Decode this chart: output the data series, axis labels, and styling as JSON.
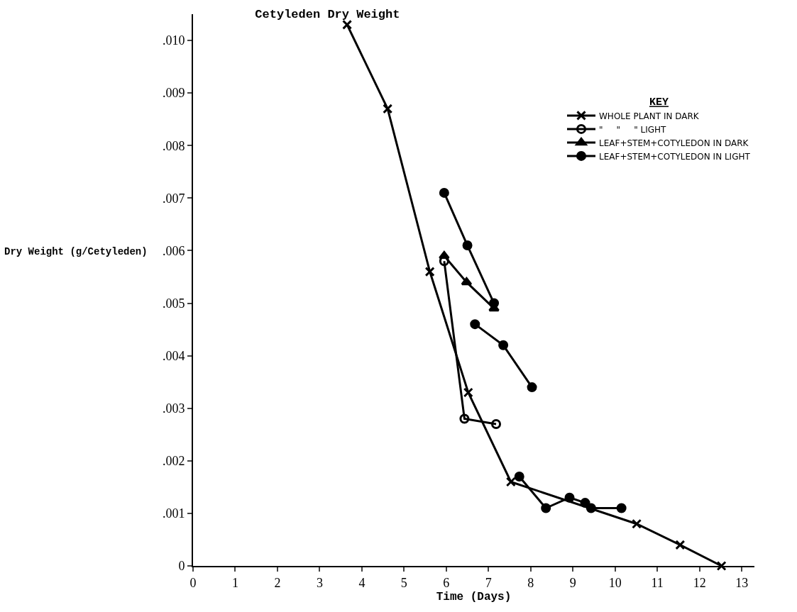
{
  "chart_data": {
    "type": "line",
    "title": "Cetyleden Dry Weight",
    "xlabel": "Time (Days)",
    "ylabel": "Dry Weight (g/Cetyleden)",
    "legend_title": "KEY",
    "xlim": [
      0,
      13.3
    ],
    "xticks": [
      0,
      1,
      2,
      3,
      4,
      5,
      6,
      7,
      8,
      9,
      10,
      11,
      12,
      13
    ],
    "ylim": [
      0,
      0.0105
    ],
    "yticks": [
      {
        "value": 0,
        "label": "0"
      },
      {
        "value": 0.001,
        "label": ".001"
      },
      {
        "value": 0.002,
        "label": ".002"
      },
      {
        "value": 0.003,
        "label": ".003"
      },
      {
        "value": 0.004,
        "label": ".004"
      },
      {
        "value": 0.005,
        "label": ".005"
      },
      {
        "value": 0.006,
        "label": ".006"
      },
      {
        "value": 0.007,
        "label": ".007"
      },
      {
        "value": 0.008,
        "label": ".008"
      },
      {
        "value": 0.009,
        "label": ".009"
      },
      {
        "value": 0.01,
        "label": ".010"
      }
    ],
    "grid": false,
    "legend": "top right",
    "line_style": "solid",
    "series": [
      {
        "name": "WHOLE PLANT IN DARK",
        "color": "#000000",
        "marker": "cross",
        "x": [
          3.65,
          4.61,
          5.61,
          6.52,
          7.53,
          10.51,
          11.54,
          12.52
        ],
        "values": [
          0.0103,
          0.0087,
          0.0056,
          0.0033,
          0.0016,
          0.0008,
          0.0004,
          0
        ]
      },
      {
        "name": "\"     \"     \" LIGHT",
        "color": "#000000",
        "marker": "circle-open",
        "x": [
          5.95,
          6.43,
          7.18
        ],
        "values": [
          0.0058,
          0.0028,
          0.0027
        ]
      },
      {
        "name": "LEAF+STEM+COTYLEDON IN DARK",
        "color": "#000000",
        "marker": "triangle",
        "x": [
          5.95,
          6.48,
          7.13
        ],
        "values": [
          0.0059,
          0.0054,
          0.0049
        ]
      },
      {
        "name": "LEAF+STEM+COTYLEDON IN LIGHT",
        "color": "#000000",
        "marker": "circle",
        "x": [
          5.95,
          6.5,
          7.13
        ],
        "values": [
          0.0071,
          0.0061,
          0.005
        ]
      },
      {
        "color": "#000000",
        "marker": "circle",
        "x": [
          6.68,
          7.35,
          8.03
        ],
        "values": [
          0.0046,
          0.0042,
          0.0034
        ]
      },
      {
        "color": "#000000",
        "marker": "circle",
        "x": [
          7.73,
          8.36,
          8.92,
          9.29,
          9.43,
          10.15
        ],
        "values": [
          0.0017,
          0.0011,
          0.0013,
          0.0012,
          0.0011,
          0.0011
        ]
      }
    ]
  }
}
